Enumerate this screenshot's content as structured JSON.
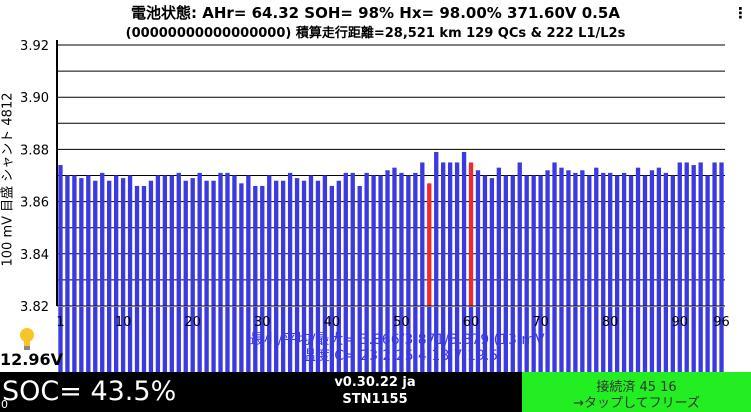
{
  "header": {
    "line1": "電池状態:  AHr= 64.32  SOH= 98%   Hx= 98.00%   371.60V 0.5A",
    "line2": "(00000000000000000) 積算走行距離=28,521 km  129 QCs  &  222 L1/L2s",
    "menu_icon": "overflow-menu-icon",
    "menu_glyph": "⋮"
  },
  "chart_data": {
    "type": "bar",
    "ylabel": "100 mV 目盛   シャント 4812",
    "ylim": [
      3.82,
      3.92
    ],
    "y_ticks": [
      3.82,
      3.84,
      3.86,
      3.88,
      3.9,
      3.92
    ],
    "y_tick_labels": [
      "3.82",
      "3.84",
      "3.86",
      "3.88",
      "3.90",
      "3.92"
    ],
    "x_tick_labels": [
      "1",
      "10",
      "20",
      "30",
      "40",
      "50",
      "60",
      "70",
      "80",
      "90",
      "96"
    ],
    "x_ticks": [
      1,
      10,
      20,
      30,
      40,
      50,
      60,
      70,
      80,
      90,
      96
    ],
    "categories_count": 96,
    "values": [
      3.874,
      3.87,
      3.87,
      3.869,
      3.87,
      3.868,
      3.871,
      3.868,
      3.87,
      3.869,
      3.87,
      3.866,
      3.866,
      3.868,
      3.87,
      3.87,
      3.87,
      3.871,
      3.868,
      3.869,
      3.871,
      3.868,
      3.868,
      3.871,
      3.871,
      3.87,
      3.867,
      3.87,
      3.866,
      3.866,
      3.87,
      3.868,
      3.868,
      3.871,
      3.869,
      3.868,
      3.87,
      3.868,
      3.87,
      3.866,
      3.868,
      3.871,
      3.871,
      3.866,
      3.871,
      3.87,
      3.87,
      3.872,
      3.873,
      3.871,
      3.87,
      3.871,
      3.875,
      3.867,
      3.879,
      3.875,
      3.875,
      3.875,
      3.879,
      3.875,
      3.872,
      3.87,
      3.869,
      3.873,
      3.87,
      3.87,
      3.875,
      3.87,
      3.87,
      3.87,
      3.872,
      3.875,
      3.873,
      3.872,
      3.871,
      3.872,
      3.87,
      3.873,
      3.871,
      3.871,
      3.87,
      3.871,
      3.87,
      3.873,
      3.87,
      3.872,
      3.873,
      3.871,
      3.87,
      3.875,
      3.875,
      3.874,
      3.875,
      3.87,
      3.875,
      3.875
    ],
    "highlight_indices": [
      53,
      59
    ],
    "colors": {
      "bar": "#3a3ae0",
      "highlight": "#ee2a2a",
      "bottom_bar": "#3a3ae0"
    },
    "overlay_text": {
      "line1": "最小/平均/最大= 3.866/3.871/3.879 (13 mV)",
      "line2": "温度 C= 23.2 25.4 18.7 19.5"
    }
  },
  "status": {
    "voltage": "12.96V",
    "bulb_icon": "lightbulb-icon",
    "soc": "SOC= 43.5%",
    "version": "v0.30.22 ja",
    "station": "STN1155",
    "connection_line1": "接続済 45 16",
    "connection_line2": "→タップしてフリーズ",
    "small_label": "0",
    "connection_color": "#22ee22"
  }
}
